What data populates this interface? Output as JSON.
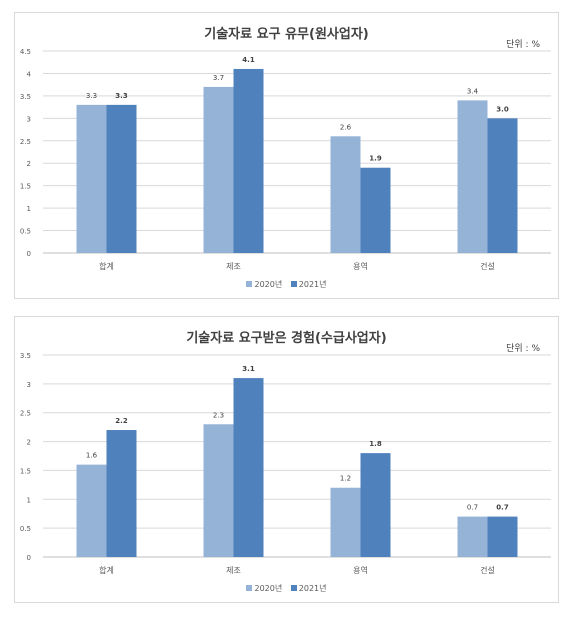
{
  "colors": {
    "series_2020": "#95b3d7",
    "series_2021": "#4f81bd",
    "grid": "#d9d9d9",
    "text": "#404040"
  },
  "chart_data": [
    {
      "type": "bar",
      "title": "기술자료 요구 유무(원사업자)",
      "unit_label": "단위 : %",
      "categories": [
        "합계",
        "제조",
        "용역",
        "건설"
      ],
      "series": [
        {
          "name": "2020년",
          "values": [
            3.3,
            3.7,
            2.6,
            3.4
          ]
        },
        {
          "name": "2021년",
          "values": [
            3.3,
            4.1,
            1.9,
            3.0
          ]
        }
      ],
      "value_labels": [
        [
          "3.3",
          "3.7",
          "2.6",
          "3.4"
        ],
        [
          "3.3",
          "4.1",
          "1.9",
          "3.0"
        ]
      ],
      "ylim": [
        0,
        4.5
      ],
      "yticks": [
        "0",
        "0.5",
        "1",
        "1.5",
        "2",
        "2.5",
        "3",
        "3.5",
        "4",
        "4.5"
      ],
      "grid": true,
      "legend_position": "bottom"
    },
    {
      "type": "bar",
      "title": "기술자료 요구받은 경험(수급사업자)",
      "unit_label": "단위 : %",
      "categories": [
        "합계",
        "제조",
        "용역",
        "건설"
      ],
      "series": [
        {
          "name": "2020년",
          "values": [
            1.6,
            2.3,
            1.2,
            0.7
          ]
        },
        {
          "name": "2021년",
          "values": [
            2.2,
            3.1,
            1.8,
            0.7
          ]
        }
      ],
      "value_labels": [
        [
          "1.6",
          "2.3",
          "1.2",
          "0.7"
        ],
        [
          "2.2",
          "3.1",
          "1.8",
          "0.7"
        ]
      ],
      "ylim": [
        0,
        3.5
      ],
      "yticks": [
        "0",
        "0.5",
        "1",
        "1.5",
        "2",
        "2.5",
        "3",
        "3.5"
      ],
      "grid": true,
      "legend_position": "bottom"
    }
  ]
}
